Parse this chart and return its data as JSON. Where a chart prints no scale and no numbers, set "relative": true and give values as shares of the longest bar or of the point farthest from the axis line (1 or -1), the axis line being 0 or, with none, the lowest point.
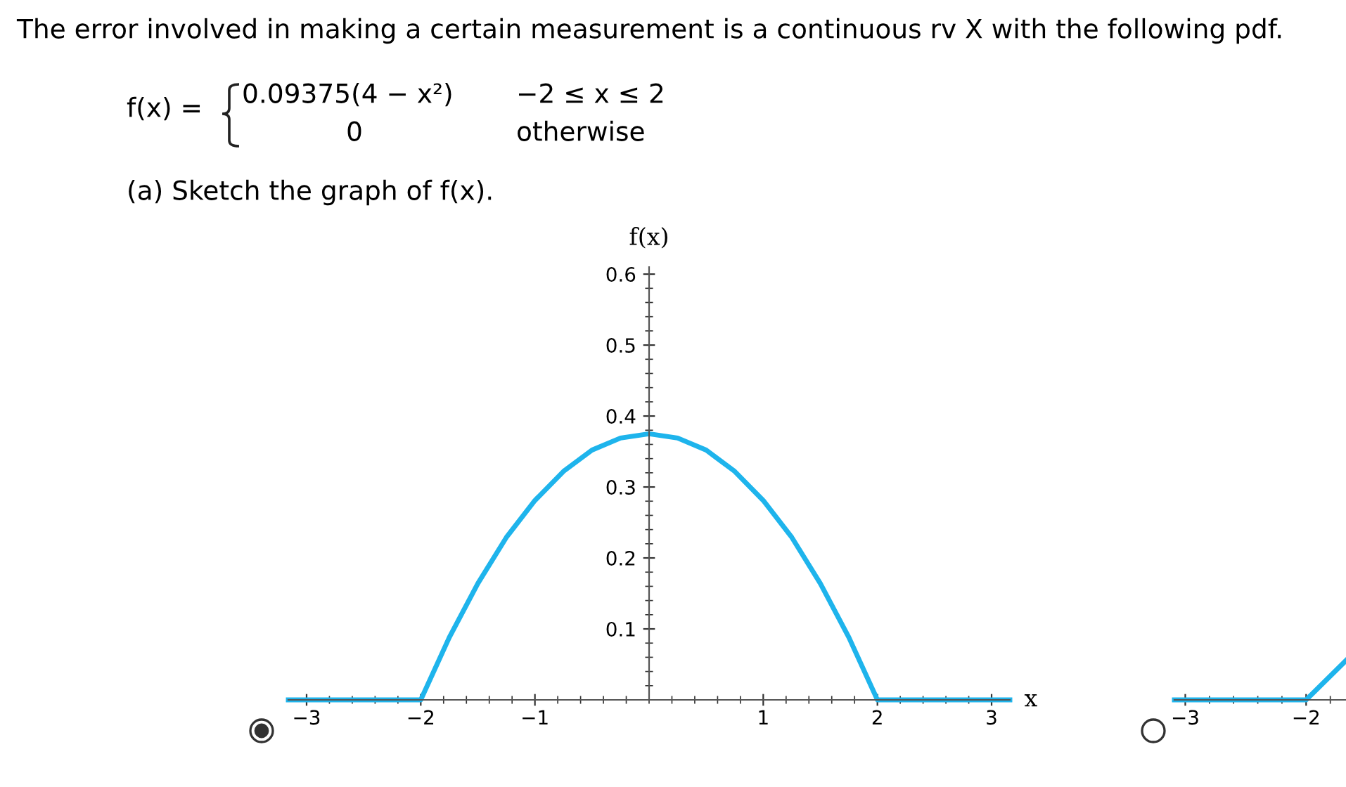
{
  "chart_data": [
    {
      "type": "line",
      "title": "The error involved in making a certain measurement is a continuous rv X with the following pdf.",
      "annotations": [
        "f(x) =",
        "0.09375(4 − x²)",
        "−2 ≤ x ≤ 2",
        "0",
        "otherwise",
        "(a) Sketch the graph of f(x)."
      ],
      "xlabel": "x",
      "ylabel": "f(x)",
      "series": [
        {
          "color": "#1eb4ec",
          "x": [
            -3.16,
            -2,
            -1.75,
            -1.5,
            -1.25,
            -1,
            -0.75,
            -0.5,
            -0.25,
            0,
            0.25,
            0.5,
            0.75,
            1,
            1.25,
            1.5,
            1.75,
            2,
            3.16
          ],
          "values": [
            0,
            0,
            0.088,
            0.164,
            0.229,
            0.281,
            0.322,
            0.352,
            0.369,
            0.375,
            0.369,
            0.352,
            0.322,
            0.281,
            0.229,
            0.164,
            0.088,
            0,
            0
          ]
        }
      ],
      "xlim": [
        -3.16,
        3.16
      ],
      "ylim": [
        0,
        0.61
      ],
      "xticks": [
        -3,
        -2,
        -1,
        1,
        2,
        3
      ],
      "yticks": [
        0.1,
        0.2,
        0.3,
        0.4,
        0.5,
        0.6
      ],
      "grid": false
    },
    {
      "type": "line",
      "relative": true,
      "series": [
        {
          "color": "#1eb4ec",
          "x": [
            -3.09,
            -2,
            -1.67
          ],
          "values": [
            0,
            0,
            1
          ]
        }
      ],
      "xlim": [
        -3.09,
        -1.67
      ],
      "xticks": [
        -3,
        -2
      ],
      "tick_labels": "x",
      "grid": false
    }
  ]
}
